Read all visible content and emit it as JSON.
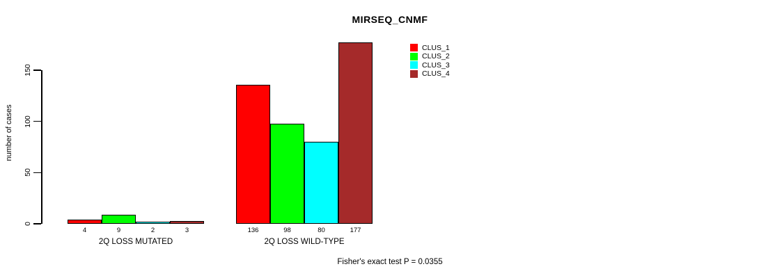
{
  "title": "MIRSEQ_CNMF",
  "footer": "Fisher's exact test P = 0.0355",
  "y_axis_label": "number of cases",
  "chart_data": {
    "type": "bar",
    "title": "MIRSEQ_CNMF",
    "xlabel": "",
    "ylabel": "number of cases",
    "yticks": [
      0,
      50,
      100,
      150
    ],
    "ylim": [
      0,
      180
    ],
    "grid": false,
    "legend_position": "top-right",
    "categories": [
      "2Q LOSS MUTATED",
      "2Q LOSS WILD-TYPE"
    ],
    "series": [
      {
        "name": "CLUS_1",
        "color": "#FF0000",
        "values": [
          4,
          136
        ]
      },
      {
        "name": "CLUS_2",
        "color": "#00FF00",
        "values": [
          9,
          98
        ]
      },
      {
        "name": "CLUS_3",
        "color": "#00FFFF",
        "values": [
          2,
          80
        ]
      },
      {
        "name": "CLUS_4",
        "color": "#A52A2A",
        "values": [
          3,
          177
        ]
      }
    ],
    "bar_value_labels": [
      [
        "4",
        "9",
        "2",
        "3"
      ],
      [
        "136",
        "98",
        "80",
        "177"
      ]
    ],
    "annotation": "Fisher's exact test P = 0.0355"
  }
}
